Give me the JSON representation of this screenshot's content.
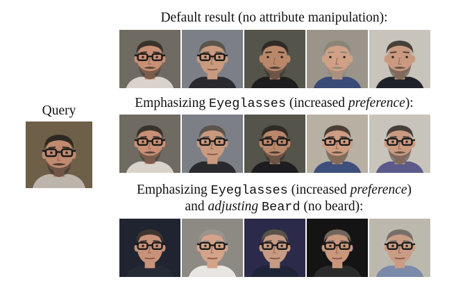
{
  "query_label": "Query",
  "rows": [
    {
      "caption_parts": [
        "Default result (no attribute manipulation):"
      ],
      "faces": [
        {
          "bg": "#6f6a62",
          "skin": "#c98f74",
          "hair": "#3a332c",
          "glasses": true,
          "beard": true,
          "shirt": "#d9d3cc"
        },
        {
          "bg": "#7c7f86",
          "skin": "#c99a7e",
          "hair": "#5a544c",
          "glasses": true,
          "beard": false,
          "shirt": "#2a2a2e"
        },
        {
          "bg": "#55544a",
          "skin": "#b9876a",
          "hair": "#2f2a25",
          "glasses": false,
          "beard": true,
          "shirt": "#1d1d20"
        },
        {
          "bg": "#9a948a",
          "skin": "#d0a187",
          "hair": "#8a8479",
          "glasses": false,
          "beard": true,
          "shirt": "#394a77"
        },
        {
          "bg": "#c9c4bb",
          "skin": "#c99a80",
          "hair": "#46403a",
          "glasses": false,
          "beard": true,
          "shirt": "#20222a"
        }
      ]
    },
    {
      "caption_parts": [
        "Emphasizing ",
        "Eyeglasses",
        " (increased ",
        "preference",
        "):"
      ],
      "faces": [
        {
          "bg": "#6f6a62",
          "skin": "#c98f74",
          "hair": "#3a332c",
          "glasses": true,
          "beard": true,
          "shirt": "#d9d3cc"
        },
        {
          "bg": "#7c7f86",
          "skin": "#c99a7e",
          "hair": "#5a544c",
          "glasses": true,
          "beard": false,
          "shirt": "#2a2a2e"
        },
        {
          "bg": "#55544a",
          "skin": "#b9876a",
          "hair": "#2f2a25",
          "glasses": true,
          "beard": true,
          "shirt": "#1d1d20"
        },
        {
          "bg": "#b8b0a3",
          "skin": "#cf9d82",
          "hair": "#4a4037",
          "glasses": true,
          "beard": true,
          "shirt": "#3d4f7a"
        },
        {
          "bg": "#c9c4bb",
          "skin": "#c99a80",
          "hair": "#46403a",
          "glasses": true,
          "beard": true,
          "shirt": "#5b5a8a"
        }
      ]
    },
    {
      "caption_parts": [
        "Emphasizing ",
        "Eyeglasses",
        " (increased ",
        "preference",
        ")"
      ],
      "caption2_parts": [
        "and ",
        "adjusting",
        " ",
        "Beard",
        " (no beard):"
      ],
      "faces": [
        {
          "bg": "#1f2430",
          "skin": "#c79279",
          "hair": "#3d352e",
          "glasses": true,
          "beard": false,
          "shirt": "#262a35"
        },
        {
          "bg": "#8d8a84",
          "skin": "#d3a48a",
          "hair": "#9a948c",
          "glasses": true,
          "beard": false,
          "shirt": "#e8e6e2"
        },
        {
          "bg": "#2c2a4a",
          "skin": "#c79a84",
          "hair": "#5a5148",
          "glasses": true,
          "beard": false,
          "shirt": "#1f2438"
        },
        {
          "bg": "#141414",
          "skin": "#c9977c",
          "hair": "#6e665c",
          "glasses": true,
          "beard": false,
          "shirt": "#2a2a2a"
        },
        {
          "bg": "#bdb8ae",
          "skin": "#c99c84",
          "hair": "#777068",
          "glasses": true,
          "beard": false,
          "shirt": "#7a8aa8"
        }
      ]
    }
  ],
  "query_face": {
    "bg": "#6d5f48",
    "skin": "#c08a6f",
    "hair": "#2e2822",
    "glasses": true,
    "beard": true,
    "shirt": "#bdb5ab"
  }
}
